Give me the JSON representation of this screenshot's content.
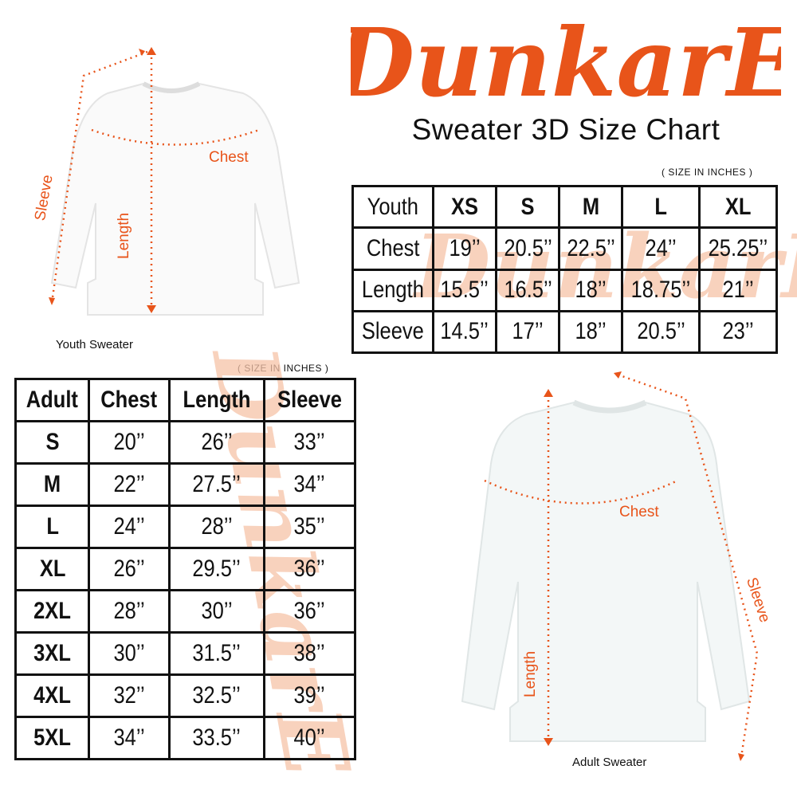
{
  "brand": {
    "logo_text": "DunkarE",
    "color": "#E8541A"
  },
  "title": "Sweater 3D Size Chart",
  "youth": {
    "unit_note": "( SIZE IN INCHES )",
    "header": [
      "Youth",
      "XS",
      "S",
      "M",
      "L",
      "XL"
    ],
    "rows": [
      {
        "cells": [
          "Chest",
          "19’’",
          "20.5’’",
          "22.5’’",
          "24’’",
          "25.25’’"
        ]
      },
      {
        "cells": [
          "Length",
          "15.5’’",
          "16.5’’",
          "18’’",
          "18.75’’",
          "21’’"
        ]
      },
      {
        "cells": [
          "Sleeve",
          "14.5’’",
          "17’’",
          "18’’",
          "20.5’’",
          "23’’"
        ]
      }
    ],
    "caption": "Youth Sweater",
    "labels": {
      "chest": "Chest",
      "length": "Length",
      "sleeve": "Sleeve"
    }
  },
  "adult": {
    "unit_note": "( SIZE IN INCHES )",
    "header": [
      "Adult",
      "Chest",
      "Length",
      "Sleeve"
    ],
    "rows": [
      {
        "cells": [
          "S",
          "20’’",
          "26’’",
          "33’’"
        ]
      },
      {
        "cells": [
          "M",
          "22’’",
          "27.5’’",
          "34’’"
        ]
      },
      {
        "cells": [
          "L",
          "24’’",
          "28’’",
          "35’’"
        ]
      },
      {
        "cells": [
          "XL",
          "26’’",
          "29.5’’",
          "36’’"
        ]
      },
      {
        "cells": [
          "2XL",
          "28’’",
          "30’’",
          "36’’"
        ]
      },
      {
        "cells": [
          "3XL",
          "30’’",
          "31.5’’",
          "38’’"
        ]
      },
      {
        "cells": [
          "4XL",
          "32’’",
          "32.5’’",
          "39’’"
        ]
      },
      {
        "cells": [
          "5XL",
          "34’’",
          "33.5’’",
          "40’’"
        ]
      }
    ],
    "caption": "Adult Sweater",
    "labels": {
      "chest": "Chest",
      "length": "Length",
      "sleeve": "Sleeve"
    }
  }
}
